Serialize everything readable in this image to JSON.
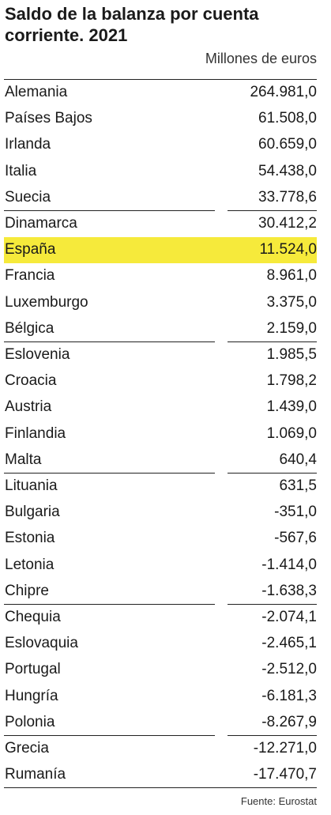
{
  "title": "Saldo de la balanza por cuenta corriente. 2021",
  "unit": "Millones de euros",
  "table": {
    "rows": [
      [
        "Alemania",
        "264.981,0"
      ],
      [
        "Países Bajos",
        "61.508,0"
      ],
      [
        "Irlanda",
        "60.659,0"
      ],
      [
        "Italia",
        "54.438,0"
      ],
      [
        "Suecia",
        "33.778,6"
      ],
      [
        "Dinamarca",
        "30.412,2"
      ],
      [
        "España",
        "11.524,0"
      ],
      [
        "Francia",
        "8.961,0"
      ],
      [
        "Luxemburgo",
        "3.375,0"
      ],
      [
        "Bélgica",
        "2.159,0"
      ],
      [
        "Eslovenia",
        "1.985,5"
      ],
      [
        "Croacia",
        "1.798,2"
      ],
      [
        "Austria",
        "1.439,0"
      ],
      [
        "Finlandia",
        "1.069,0"
      ],
      [
        "Malta",
        "640,4"
      ],
      [
        "Lituania",
        "631,5"
      ],
      [
        "Bulgaria",
        "-351,0"
      ],
      [
        "Estonia",
        "-567,6"
      ],
      [
        "Letonia",
        "-1.414,0"
      ],
      [
        "Chipre",
        "-1.638,3"
      ],
      [
        "Chequia",
        "-2.074,1"
      ],
      [
        "Eslovaquia",
        "-2.465,1"
      ],
      [
        "Portugal",
        "-2.512,0"
      ],
      [
        "Hungría",
        "-6.181,3"
      ],
      [
        "Polonia",
        "-8.267,9"
      ],
      [
        "Grecia",
        "-12.271,0"
      ],
      [
        "Rumanía",
        "-17.470,7"
      ]
    ]
  },
  "source": "Fuente: Eurostat"
}
